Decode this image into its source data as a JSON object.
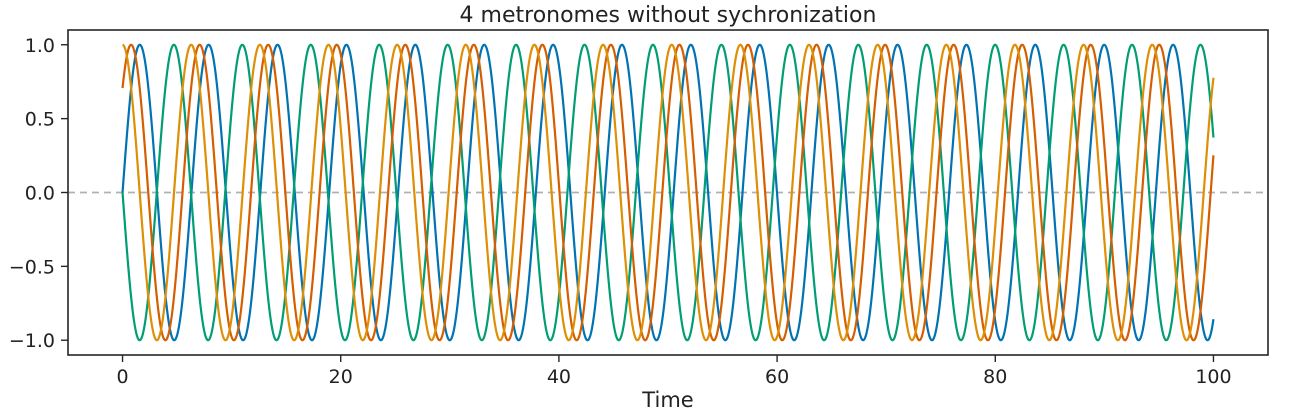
{
  "chart_data": {
    "type": "line",
    "title": "4 metronomes without sychronization",
    "xlabel": "Time",
    "ylabel": "",
    "xlim": [
      -5,
      105
    ],
    "ylim": [
      -1.1,
      1.1
    ],
    "x_ticks": [
      0,
      20,
      40,
      60,
      80,
      100
    ],
    "x_tick_labels": [
      "0",
      "20",
      "40",
      "60",
      "80",
      "100"
    ],
    "y_ticks": [
      1.0,
      0.5,
      0.0,
      -0.5,
      -1.0
    ],
    "y_tick_labels": [
      "1.0",
      "0.5",
      "0.0",
      "−0.5",
      "−1.0"
    ],
    "grid": false,
    "legend": false,
    "reference_line": {
      "y": 0.0,
      "style": "dashed",
      "color": "#b0b0b0"
    },
    "series": [
      {
        "function": "sin",
        "amplitude": 1,
        "angular_frequency": 0.995,
        "phase": 0.0,
        "x_start": 0,
        "x_end": 100,
        "color": "#0173b2"
      },
      {
        "function": "sin",
        "amplitude": 1,
        "angular_frequency": 1.0015,
        "phase": -3.1416,
        "x_start": 0,
        "x_end": 100,
        "color": "#029e73"
      },
      {
        "function": "sin",
        "amplitude": 1,
        "angular_frequency": 1.0,
        "phase": 0.7854,
        "x_start": 0,
        "x_end": 100,
        "color": "#d55e00"
      },
      {
        "function": "sin",
        "amplitude": 1,
        "angular_frequency": 0.9985,
        "phase": 1.5708,
        "x_start": 0,
        "x_end": 100,
        "color": "#de8f05"
      }
    ]
  }
}
